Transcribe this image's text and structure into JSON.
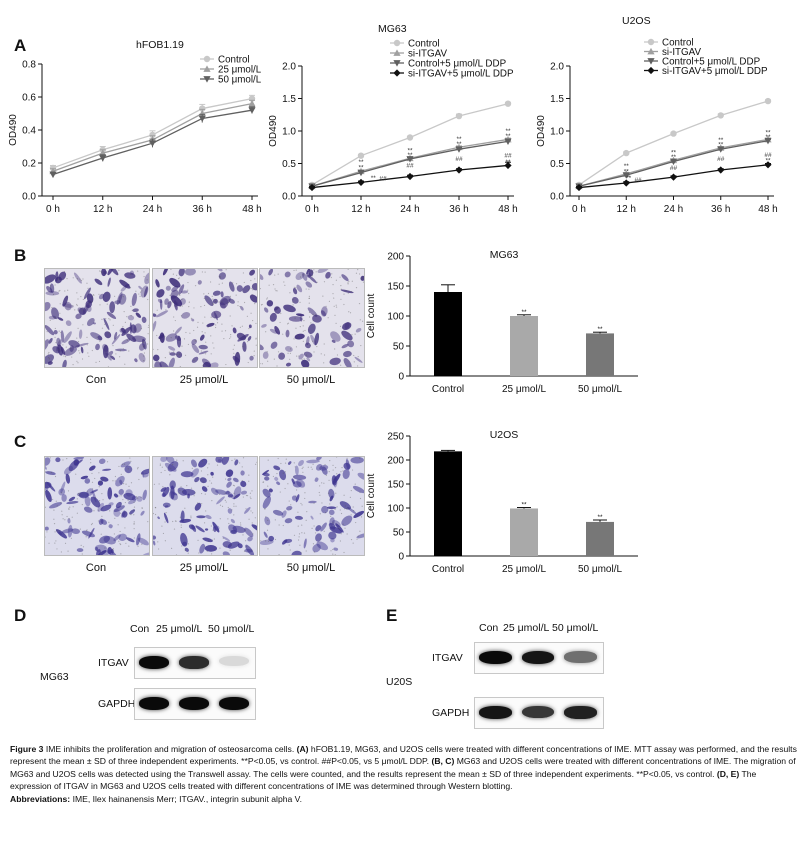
{
  "panel_letters": [
    "A",
    "B",
    "C",
    "D",
    "E"
  ],
  "chart_data": [
    {
      "id": "A1",
      "type": "line",
      "title": "hFOB1.19",
      "ylabel": "OD490",
      "categories": [
        "0 h",
        "12 h",
        "24 h",
        "36 h",
        "48 h"
      ],
      "ylim": [
        0,
        0.8
      ],
      "yticks": [
        "0.0",
        "0.2",
        "0.4",
        "0.6",
        "0.8"
      ],
      "legend_position": "top-right",
      "series": [
        {
          "name": "Control",
          "values": [
            0.17,
            0.28,
            0.37,
            0.53,
            0.59
          ],
          "err": [
            0.015,
            0.02,
            0.025,
            0.025,
            0.02
          ],
          "color": "#c8c8c8",
          "marker": "circle"
        },
        {
          "name": "25 μmol/L",
          "values": [
            0.15,
            0.26,
            0.34,
            0.5,
            0.56
          ],
          "err": [
            0.015,
            0.02,
            0.025,
            0.025,
            0.02
          ],
          "color": "#a0a0a0",
          "marker": "triangle"
        },
        {
          "name": "50 μmol/L",
          "values": [
            0.13,
            0.23,
            0.32,
            0.47,
            0.52
          ],
          "err": [
            0.015,
            0.02,
            0.025,
            0.025,
            0.02
          ],
          "color": "#606060",
          "marker": "triangle-down"
        }
      ]
    },
    {
      "id": "A2",
      "type": "line",
      "title": "MG63",
      "ylabel": "OD490",
      "categories": [
        "0 h",
        "12 h",
        "24 h",
        "36 h",
        "48 h"
      ],
      "ylim": [
        0,
        2.0
      ],
      "yticks": [
        "0.0",
        "0.5",
        "1.0",
        "1.5",
        "2.0"
      ],
      "legend_position": "top-left",
      "series": [
        {
          "name": "Control",
          "values": [
            0.17,
            0.62,
            0.9,
            1.23,
            1.42
          ],
          "err": [
            0.02,
            0.02,
            0.02,
            0.03,
            0.02
          ],
          "color": "#c8c8c8",
          "marker": "circle"
        },
        {
          "name": "si-ITGAV",
          "values": [
            0.15,
            0.38,
            0.58,
            0.75,
            0.87
          ],
          "err": [
            0.02,
            0.02,
            0.02,
            0.02,
            0.02
          ],
          "color": "#a0a0a0",
          "marker": "triangle"
        },
        {
          "name": "Control+5 μmol/L DDP",
          "values": [
            0.15,
            0.36,
            0.57,
            0.72,
            0.84
          ],
          "err": [
            0.02,
            0.02,
            0.02,
            0.02,
            0.02
          ],
          "color": "#606060",
          "marker": "triangle-down"
        },
        {
          "name": "si-ITGAV+5 μmol/L DDP",
          "values": [
            0.13,
            0.21,
            0.3,
            0.4,
            0.47
          ],
          "err": [
            0.015,
            0.02,
            0.02,
            0.02,
            0.05
          ],
          "color": "#111111",
          "marker": "diamond"
        }
      ],
      "annotations": [
        {
          "x": 1,
          "y": 0.52,
          "text": "**"
        },
        {
          "x": 1,
          "y": 0.44,
          "text": "**"
        },
        {
          "x": 1.25,
          "y": 0.28,
          "text": "**"
        },
        {
          "x": 1.45,
          "y": 0.27,
          "text": "##"
        },
        {
          "x": 2,
          "y": 0.7,
          "text": "**"
        },
        {
          "x": 2,
          "y": 0.63,
          "text": "**"
        },
        {
          "x": 2,
          "y": 0.47,
          "text": "##"
        },
        {
          "x": 3,
          "y": 0.88,
          "text": "**"
        },
        {
          "x": 3,
          "y": 0.8,
          "text": "**"
        },
        {
          "x": 3,
          "y": 0.57,
          "text": "##"
        },
        {
          "x": 4,
          "y": 1.0,
          "text": "**"
        },
        {
          "x": 4,
          "y": 0.92,
          "text": "**"
        },
        {
          "x": 4,
          "y": 0.62,
          "text": "##"
        },
        {
          "x": 4,
          "y": 0.52,
          "text": "**"
        }
      ]
    },
    {
      "id": "A3",
      "type": "line",
      "title": "U2OS",
      "ylabel": "OD490",
      "categories": [
        "0 h",
        "12 h",
        "24 h",
        "36 h",
        "48 h"
      ],
      "ylim": [
        0,
        2.0
      ],
      "yticks": [
        "0.0",
        "0.5",
        "1.0",
        "1.5",
        "2.0"
      ],
      "legend_position": "top-right",
      "series": [
        {
          "name": "Control",
          "values": [
            0.17,
            0.66,
            0.96,
            1.24,
            1.46
          ],
          "err": [
            0.02,
            0.02,
            0.02,
            0.02,
            0.02
          ],
          "color": "#c8c8c8",
          "marker": "circle"
        },
        {
          "name": "si-ITGAV",
          "values": [
            0.15,
            0.34,
            0.55,
            0.74,
            0.87
          ],
          "err": [
            0.02,
            0.02,
            0.02,
            0.02,
            0.02
          ],
          "color": "#a0a0a0",
          "marker": "triangle"
        },
        {
          "name": "Control+5 μmol/L DDP",
          "values": [
            0.15,
            0.32,
            0.53,
            0.72,
            0.85
          ],
          "err": [
            0.02,
            0.02,
            0.02,
            0.02,
            0.02
          ],
          "color": "#606060",
          "marker": "triangle-down"
        },
        {
          "name": "si-ITGAV+5 μmol/L DDP",
          "values": [
            0.13,
            0.2,
            0.29,
            0.4,
            0.48
          ],
          "err": [
            0.015,
            0.02,
            0.02,
            0.02,
            0.02
          ],
          "color": "#111111",
          "marker": "diamond"
        }
      ],
      "annotations": [
        {
          "x": 1,
          "y": 0.46,
          "text": "**"
        },
        {
          "x": 1,
          "y": 0.38,
          "text": "**"
        },
        {
          "x": 1.05,
          "y": 0.28,
          "text": "**"
        },
        {
          "x": 1.25,
          "y": 0.25,
          "text": "##"
        },
        {
          "x": 2,
          "y": 0.67,
          "text": "**"
        },
        {
          "x": 2,
          "y": 0.6,
          "text": "**"
        },
        {
          "x": 2,
          "y": 0.43,
          "text": "##"
        },
        {
          "x": 3,
          "y": 0.86,
          "text": "**"
        },
        {
          "x": 3,
          "y": 0.79,
          "text": "**"
        },
        {
          "x": 3,
          "y": 0.57,
          "text": "##"
        },
        {
          "x": 4,
          "y": 0.98,
          "text": "**"
        },
        {
          "x": 4,
          "y": 0.91,
          "text": "**"
        },
        {
          "x": 4,
          "y": 0.63,
          "text": "##"
        },
        {
          "x": 4,
          "y": 0.55,
          "text": "**"
        }
      ]
    },
    {
      "id": "B",
      "type": "bar",
      "title": "MG63",
      "ylabel": "Cell count",
      "categories": [
        "Control",
        "25 μmol/L",
        "50 μmol/L"
      ],
      "values": [
        140,
        100,
        71
      ],
      "err": [
        12,
        2,
        2
      ],
      "colors": [
        "#000000",
        "#a9a9a9",
        "#777777"
      ],
      "sig": [
        "",
        "**",
        "**"
      ],
      "ylim": [
        0,
        200
      ],
      "yticks": [
        "0",
        "50",
        "100",
        "150",
        "200"
      ]
    },
    {
      "id": "C",
      "type": "bar",
      "title": "U2OS",
      "ylabel": "Cell count",
      "categories": [
        "Control",
        "25 μmol/L",
        "50 μmol/L"
      ],
      "values": [
        218,
        99,
        71
      ],
      "err": [
        2,
        2,
        4
      ],
      "colors": [
        "#000000",
        "#a9a9a9",
        "#777777"
      ],
      "sig": [
        "",
        "**",
        "**"
      ],
      "ylim": [
        0,
        250
      ],
      "yticks": [
        "0",
        "50",
        "100",
        "150",
        "200",
        "250"
      ]
    }
  ],
  "micrographs": {
    "B": {
      "labels": [
        "Con",
        "25 μmol/L",
        "50 μmol/L"
      ],
      "density": [
        0.55,
        0.42,
        0.35
      ],
      "color": "#3d2d7a"
    },
    "C": {
      "labels": [
        "Con",
        "25 μmol/L",
        "50 μmol/L"
      ],
      "density": [
        0.5,
        0.45,
        0.4
      ],
      "color": "#3e3590"
    }
  },
  "blots": {
    "D": {
      "cell_line": "MG63",
      "lanes": [
        "Con",
        "25 μmol/L",
        "50 μmol/L"
      ],
      "rows": [
        "ITGAV",
        "GAPDH"
      ],
      "itgav_intensity": [
        1.0,
        0.85,
        0.08
      ],
      "gapdh_intensity": [
        1.0,
        1.0,
        1.0
      ]
    },
    "E": {
      "cell_line": "U20S",
      "lanes": [
        "Con",
        "25 μmol/L",
        "50 μmol/L"
      ],
      "rows": [
        "ITGAV",
        "GAPDH"
      ],
      "itgav_intensity": [
        1.0,
        0.95,
        0.55
      ],
      "gapdh_intensity": [
        0.95,
        0.8,
        0.9
      ]
    }
  },
  "caption": {
    "figure_label": "Figure 3",
    "title": "IME inhibits the proliferation and migration of osteosarcoma cells.",
    "segments": [
      {
        "b": "(A)",
        "t": " hFOB1.19, MG63, and U2OS cells were treated with different concentrations of IME. MTT assay was performed, and the results represent the mean ± SD of three independent experiments. **P<0.05, vs control. ##P<0.05, vs 5 μmol/L DDP. "
      },
      {
        "b": "(B, C)",
        "t": " MG63 and U2OS cells were treated with different concentrations of IME. The migration of MG63 and U2OS cells was detected using the Transwell assay. The cells were counted, and the results represent the mean ± SD of three independent experiments. **P<0.05, vs control. "
      },
      {
        "b": "(D, E)",
        "t": " The expression of ITGAV in MG63 and U2OS cells treated with different concentrations of IME was determined through Western blotting."
      }
    ],
    "abbreviations_label": "Abbreviations:",
    "abbreviations_text": "IME, Ilex hainanensis Merr; ITGAV., integrin subunit alpha V."
  }
}
